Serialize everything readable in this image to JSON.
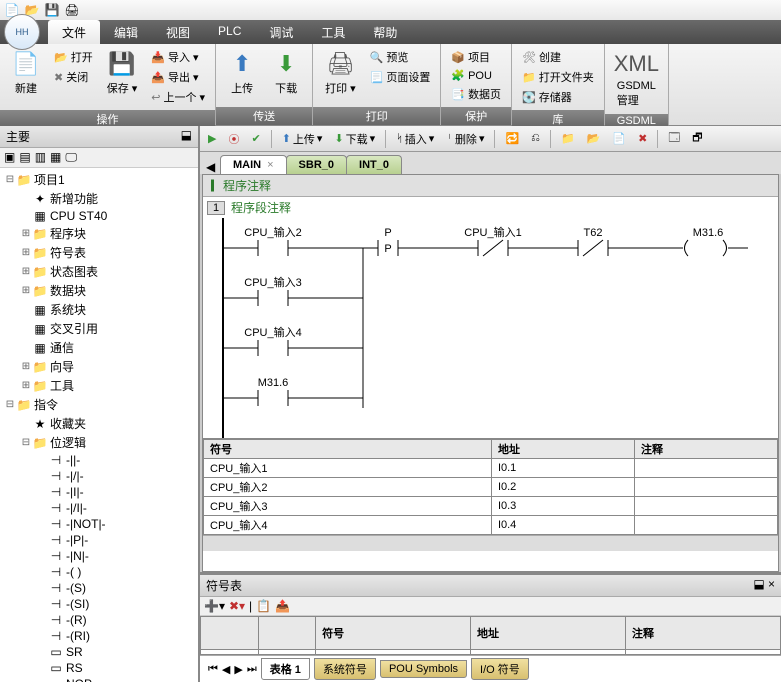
{
  "quickAccess": [
    "new",
    "open",
    "save",
    "print"
  ],
  "menus": {
    "items": [
      "文件",
      "编辑",
      "视图",
      "PLC",
      "调试",
      "工具",
      "帮助"
    ],
    "activeIndex": 0
  },
  "ribbon": {
    "groups": [
      {
        "label": "操作",
        "items": [
          {
            "kind": "lg",
            "icon": "new",
            "text": "新建"
          },
          {
            "kind": "col",
            "items": [
              {
                "icon": "open",
                "text": "打开"
              },
              {
                "icon": "close",
                "text": "关闭"
              }
            ]
          },
          {
            "kind": "lg",
            "icon": "save",
            "text": "保存",
            "dd": true
          },
          {
            "kind": "col",
            "items": [
              {
                "icon": "import",
                "text": "导入 ▾"
              },
              {
                "icon": "export",
                "text": "导出 ▾"
              },
              {
                "icon": "prev",
                "text": "上一个 ▾"
              }
            ]
          }
        ]
      },
      {
        "label": "传送",
        "items": [
          {
            "kind": "lg",
            "icon": "up",
            "text": "上传"
          },
          {
            "kind": "lg",
            "icon": "down",
            "text": "下载"
          }
        ]
      },
      {
        "label": "打印",
        "items": [
          {
            "kind": "lg",
            "icon": "print",
            "text": "打印",
            "dd": true
          },
          {
            "kind": "col",
            "items": [
              {
                "icon": "preview",
                "text": "预览"
              },
              {
                "icon": "pagesetup",
                "text": "页面设置"
              }
            ]
          }
        ]
      },
      {
        "label": "保护",
        "items": [
          {
            "kind": "col",
            "items": [
              {
                "icon": "project",
                "text": "项目"
              },
              {
                "icon": "pou",
                "text": "POU"
              },
              {
                "icon": "datapage",
                "text": "数据页"
              }
            ]
          }
        ]
      },
      {
        "label": "库",
        "items": [
          {
            "kind": "col",
            "items": [
              {
                "icon": "create",
                "text": "创建"
              },
              {
                "icon": "openfolder",
                "text": "打开文件夹"
              },
              {
                "icon": "memory",
                "text": "存储器"
              }
            ]
          }
        ]
      },
      {
        "label": "GSDML",
        "items": [
          {
            "kind": "lg",
            "icon": "xml",
            "text": "GSDML\n管理"
          }
        ]
      }
    ]
  },
  "sidebar": {
    "title": "主要",
    "pin": "⬓"
  },
  "tree": [
    {
      "d": 0,
      "exp": "-",
      "ico": "📁",
      "lbl": "项目1"
    },
    {
      "d": 1,
      "exp": "",
      "ico": "✦",
      "lbl": "新增功能"
    },
    {
      "d": 1,
      "exp": "",
      "ico": "▦",
      "lbl": "CPU ST40"
    },
    {
      "d": 1,
      "exp": "+",
      "ico": "📁",
      "lbl": "程序块"
    },
    {
      "d": 1,
      "exp": "+",
      "ico": "📁",
      "lbl": "符号表"
    },
    {
      "d": 1,
      "exp": "+",
      "ico": "📁",
      "lbl": "状态图表"
    },
    {
      "d": 1,
      "exp": "+",
      "ico": "📁",
      "lbl": "数据块"
    },
    {
      "d": 1,
      "exp": "",
      "ico": "▦",
      "lbl": "系统块"
    },
    {
      "d": 1,
      "exp": "",
      "ico": "▦",
      "lbl": "交叉引用"
    },
    {
      "d": 1,
      "exp": "",
      "ico": "▦",
      "lbl": "通信"
    },
    {
      "d": 1,
      "exp": "+",
      "ico": "📁",
      "lbl": "向导"
    },
    {
      "d": 1,
      "exp": "+",
      "ico": "📁",
      "lbl": "工具"
    },
    {
      "d": 0,
      "exp": "-",
      "ico": "📁",
      "lbl": "指令"
    },
    {
      "d": 1,
      "exp": "",
      "ico": "★",
      "lbl": "收藏夹"
    },
    {
      "d": 1,
      "exp": "-",
      "ico": "📁",
      "lbl": "位逻辑"
    },
    {
      "d": 2,
      "exp": "",
      "ico": "⊣",
      "lbl": "-||-"
    },
    {
      "d": 2,
      "exp": "",
      "ico": "⊣",
      "lbl": "-|/|-"
    },
    {
      "d": 2,
      "exp": "",
      "ico": "⊣",
      "lbl": "-|I|-"
    },
    {
      "d": 2,
      "exp": "",
      "ico": "⊣",
      "lbl": "-|/I|-"
    },
    {
      "d": 2,
      "exp": "",
      "ico": "⊣",
      "lbl": "-|NOT|-"
    },
    {
      "d": 2,
      "exp": "",
      "ico": "⊣",
      "lbl": "-|P|-"
    },
    {
      "d": 2,
      "exp": "",
      "ico": "⊣",
      "lbl": "-|N|-"
    },
    {
      "d": 2,
      "exp": "",
      "ico": "⊣",
      "lbl": "-( )"
    },
    {
      "d": 2,
      "exp": "",
      "ico": "⊣",
      "lbl": "-(S)"
    },
    {
      "d": 2,
      "exp": "",
      "ico": "⊣",
      "lbl": "-(SI)"
    },
    {
      "d": 2,
      "exp": "",
      "ico": "⊣",
      "lbl": "-(R)"
    },
    {
      "d": 2,
      "exp": "",
      "ico": "⊣",
      "lbl": "-(RI)"
    },
    {
      "d": 2,
      "exp": "",
      "ico": "▭",
      "lbl": "SR"
    },
    {
      "d": 2,
      "exp": "",
      "ico": "▭",
      "lbl": "RS"
    },
    {
      "d": 2,
      "exp": "",
      "ico": "▭",
      "lbl": "NOP"
    }
  ],
  "editorToolbar": {
    "upload": "上传",
    "download": "下载",
    "insert": "插入",
    "delete": "删除"
  },
  "tabs": [
    {
      "label": "MAIN",
      "active": true,
      "close": true
    },
    {
      "label": "SBR_0",
      "active": false,
      "close": false
    },
    {
      "label": "INT_0",
      "active": false,
      "close": false
    }
  ],
  "program": {
    "topComment": "程序注释",
    "sectionNum": "1",
    "sectionComment": "程序段注释",
    "contacts": {
      "in2": "CPU_输入2",
      "in3": "CPU_输入3",
      "in4": "CPU_输入4",
      "m316a": "M31.6",
      "p": "P",
      "in1": "CPU_输入1",
      "t62": "T62",
      "coil": "M31.6"
    }
  },
  "symbolGrid": {
    "cols": [
      "符号",
      "地址",
      "注释"
    ],
    "rows": [
      [
        "CPU_输入1",
        "I0.1",
        ""
      ],
      [
        "CPU_输入2",
        "I0.2",
        ""
      ],
      [
        "CPU_输入3",
        "I0.3",
        ""
      ],
      [
        "CPU_输入4",
        "I0.4",
        ""
      ]
    ]
  },
  "bottomPanel": {
    "title": "符号表",
    "gridCols": [
      "",
      "",
      "符号",
      "地址",
      "注释"
    ],
    "tabs": [
      "表格 1",
      "系统符号",
      "POU Symbols",
      "I/O 符号"
    ],
    "activeTab": 0
  }
}
